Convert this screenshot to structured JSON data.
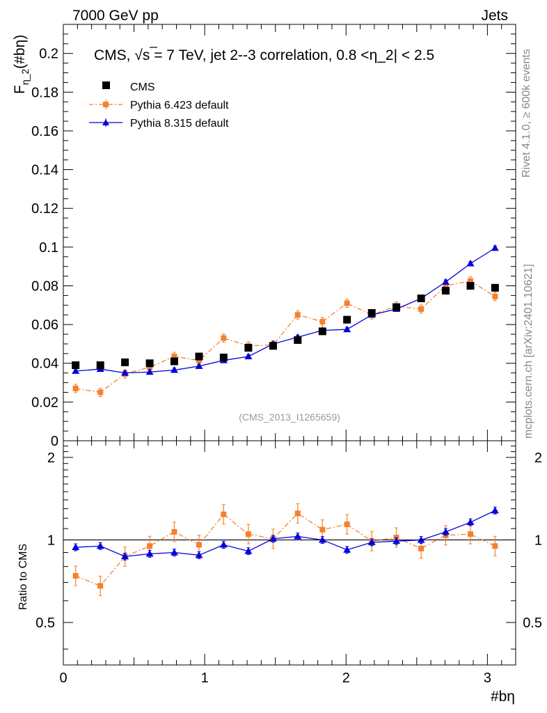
{
  "header": {
    "left": "7000 GeV pp",
    "right": "Jets"
  },
  "side_labels": {
    "rivet": "Rivet 4.1.0, ≥ 600k events",
    "mcplots": "mcplots.cern.ch [arXiv:2401.10621]"
  },
  "colors": {
    "cms": "#000000",
    "pythia6": "#f4812f",
    "pythia8": "#0000d8"
  },
  "chart_data": [
    {
      "type": "scatter",
      "panel": "main",
      "title": "CMS, √s = 7 TeV, jet 2--3 correlation, 0.8 <η_2| < 2.5",
      "title_parts": {
        "pre": "CMS, ",
        "root": "√",
        "rest": "s = 7 TeV, jet 2--3 correlation, 0.8 <η_2| < 2.5"
      },
      "ylabel": {
        "main": "F",
        "sub": "η_2",
        "suffix": "(#bη)"
      },
      "xlabel": "#bη",
      "analysis_label": "(CMS_2013_I1265659)",
      "xlim": [
        0,
        3.2
      ],
      "ylim": [
        0,
        0.215
      ],
      "yticks": [
        "0",
        "0.02",
        "0.04",
        "0.06",
        "0.08",
        "0.1",
        "0.12",
        "0.14",
        "0.16",
        "0.18",
        "0.2"
      ],
      "x": [
        0.087,
        0.262,
        0.436,
        0.611,
        0.785,
        0.96,
        1.134,
        1.309,
        1.484,
        1.658,
        1.833,
        2.007,
        2.182,
        2.356,
        2.531,
        2.705,
        2.88,
        3.054
      ],
      "series": [
        {
          "name": "CMS",
          "values": [
            0.039,
            0.039,
            0.0405,
            0.04,
            0.041,
            0.0435,
            0.043,
            0.048,
            0.049,
            0.052,
            0.0565,
            0.0625,
            0.066,
            0.069,
            0.0735,
            0.0775,
            0.08,
            0.079
          ]
        },
        {
          "name": "Pythia 6.423 default",
          "values": [
            0.027,
            0.025,
            0.0345,
            0.038,
            0.0435,
            0.0415,
            0.053,
            0.049,
            0.0495,
            0.065,
            0.0615,
            0.071,
            0.065,
            0.0695,
            0.068,
            0.08,
            0.0825,
            0.0745
          ]
        },
        {
          "name": "Pythia 8.315 default",
          "values": [
            0.036,
            0.037,
            0.035,
            0.0355,
            0.0365,
            0.0385,
            0.0415,
            0.0435,
            0.05,
            0.0535,
            0.057,
            0.0575,
            0.065,
            0.068,
            0.0735,
            0.082,
            0.0915,
            0.0995
          ]
        }
      ]
    },
    {
      "type": "scatter",
      "panel": "ratio",
      "ylabel": "Ratio to CMS",
      "xlim": [
        0,
        3.2
      ],
      "ylim": [
        0.35,
        2.3
      ],
      "log_y": true,
      "xticks": [
        "0",
        "1",
        "2",
        "3"
      ],
      "yticks": [
        "0.5",
        "1",
        "2"
      ],
      "x": [
        0.087,
        0.262,
        0.436,
        0.611,
        0.785,
        0.96,
        1.134,
        1.309,
        1.484,
        1.658,
        1.833,
        2.007,
        2.182,
        2.356,
        2.531,
        2.705,
        2.88,
        3.054
      ],
      "series": [
        {
          "name": "Pythia 6.423 default",
          "values": [
            0.74,
            0.68,
            0.87,
            0.95,
            1.07,
            0.96,
            1.24,
            1.05,
            1.01,
            1.25,
            1.09,
            1.14,
            0.99,
            1.02,
            0.93,
            1.04,
            1.05,
            0.95
          ]
        },
        {
          "name": "Pythia 8.315 default",
          "values": [
            0.94,
            0.95,
            0.87,
            0.89,
            0.9,
            0.88,
            0.96,
            0.91,
            1.01,
            1.03,
            1.0,
            0.92,
            0.98,
            0.99,
            1.0,
            1.07,
            1.16,
            1.28
          ]
        }
      ]
    }
  ]
}
